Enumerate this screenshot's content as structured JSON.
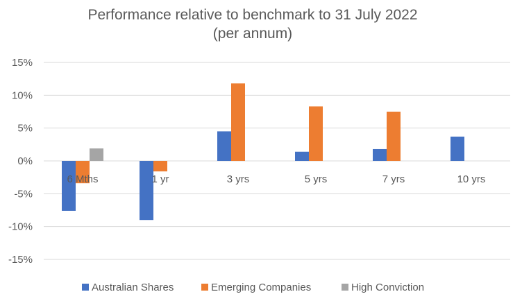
{
  "chart_data": {
    "type": "bar",
    "title": "Performance relative to benchmark to 31 July 2022",
    "subtitle": "(per annum)",
    "xlabel": "",
    "ylabel": "",
    "categories": [
      "6 Mths",
      "1 yr",
      "3 yrs",
      "5 yrs",
      "7 yrs",
      "10 yrs"
    ],
    "series": [
      {
        "name": "Australian Shares",
        "color": "#4472C4",
        "values": [
          -7.6,
          -9.0,
          4.5,
          1.4,
          1.8,
          3.7
        ]
      },
      {
        "name": "Emerging Companies",
        "color": "#ED7D31",
        "values": [
          -3.4,
          -1.6,
          11.8,
          8.3,
          7.5,
          null
        ]
      },
      {
        "name": "High Conviction",
        "color": "#A5A5A5",
        "values": [
          1.9,
          null,
          null,
          null,
          null,
          null
        ]
      }
    ],
    "ylim": [
      -15,
      15
    ],
    "yticks": [
      15,
      10,
      5,
      0,
      -5,
      -10,
      -15
    ],
    "ytick_labels": [
      "15%",
      "10%",
      "5%",
      "0%",
      "-5%",
      "-10%",
      "-15%"
    ],
    "grid": true,
    "legend_position": "bottom"
  }
}
